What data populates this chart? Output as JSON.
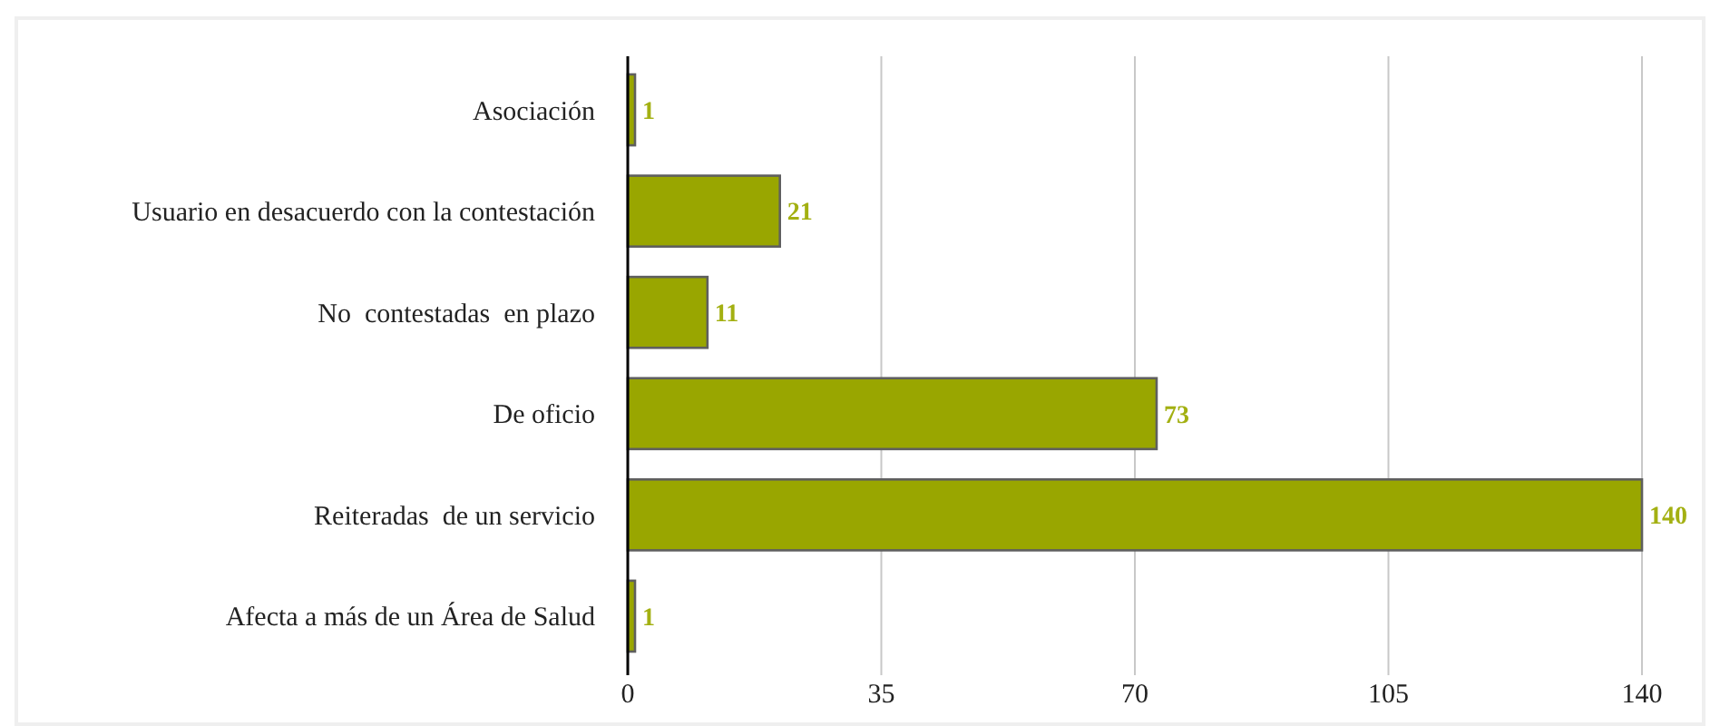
{
  "chart_data": {
    "type": "bar",
    "orientation": "horizontal",
    "categories": [
      "Asociación",
      "Usuario en desacuerdo con la contestación",
      "No  contestadas  en plazo",
      "De oficio",
      "Reiteradas  de un servicio",
      "Afecta a más de un Área de Salud"
    ],
    "values": [
      1,
      21,
      11,
      73,
      140,
      1
    ],
    "color": "#99a600",
    "xlim": [
      0,
      140
    ],
    "xticks": [
      0,
      35,
      70,
      105,
      140
    ],
    "grid": "x",
    "data_labels": true
  }
}
